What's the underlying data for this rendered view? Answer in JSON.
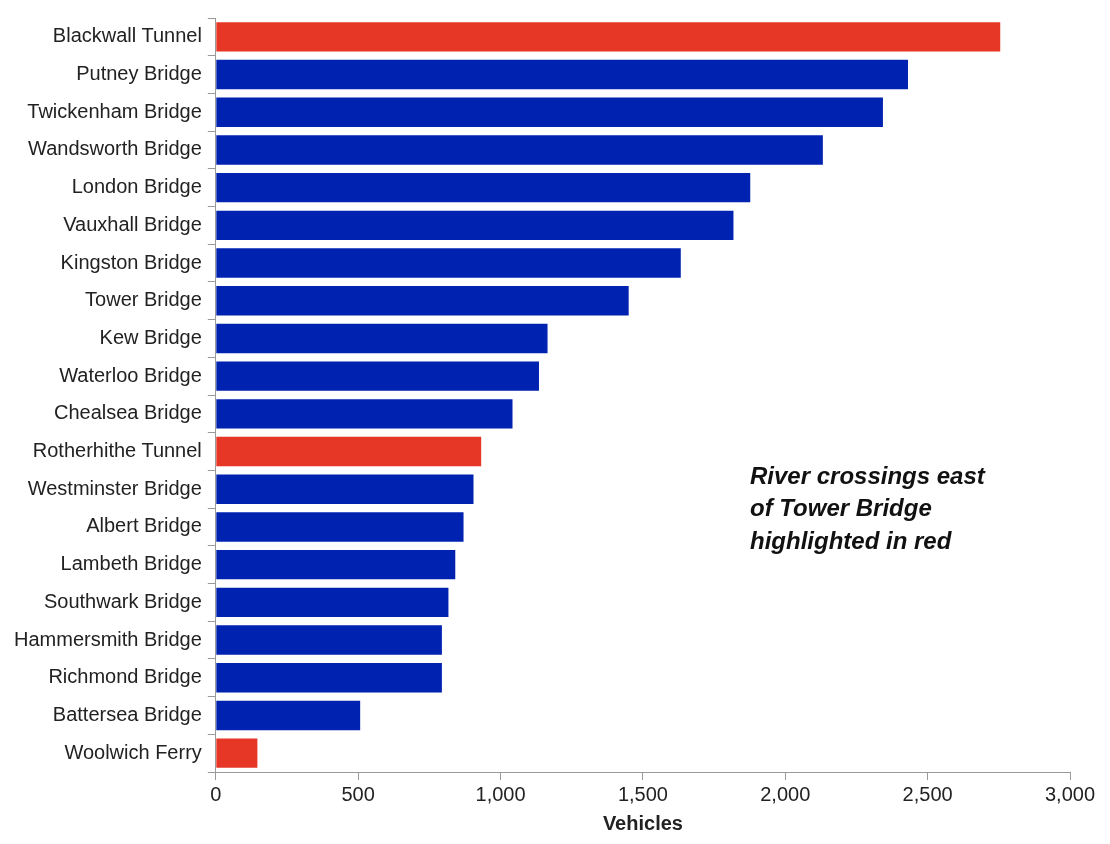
{
  "chart_data": {
    "type": "bar",
    "orientation": "horizontal",
    "xlabel": "Vehicles",
    "categories": [
      "Blackwall Tunnel",
      "Putney Bridge",
      "Twickenham Bridge",
      "Wandsworth Bridge",
      "London Bridge",
      "Vauxhall Bridge",
      "Kingston Bridge",
      "Tower Bridge",
      "Kew Bridge",
      "Waterloo Bridge",
      "Chealsea Bridge",
      "Rotherhithe Tunnel",
      "Westminster Bridge",
      "Albert Bridge",
      "Lambeth Bridge",
      "Southwark Bridge",
      "Hammersmith Bridge",
      "Richmond Bridge",
      "Battersea Bridge",
      "Woolwich Ferry"
    ],
    "values": [
      2755,
      2431,
      2343,
      2132,
      1877,
      1818,
      1633,
      1450,
      1165,
      1135,
      1042,
      932,
      905,
      870,
      841,
      817,
      794,
      794,
      507,
      146
    ],
    "colors": [
      "#e63726",
      "#0022b0",
      "#0022b0",
      "#0022b0",
      "#0022b0",
      "#0022b0",
      "#0022b0",
      "#0022b0",
      "#0022b0",
      "#0022b0",
      "#0022b0",
      "#e63726",
      "#0022b0",
      "#0022b0",
      "#0022b0",
      "#0022b0",
      "#0022b0",
      "#0022b0",
      "#0022b0",
      "#e63726"
    ],
    "xlim": [
      0,
      3000
    ],
    "xticks": [
      0,
      500,
      {
        "value": 1000,
        "label": "1,000"
      },
      {
        "value": 1500,
        "label": "1,500"
      },
      {
        "value": 2000,
        "label": "2,000"
      },
      {
        "value": 2500,
        "label": "2,500"
      },
      {
        "value": 3000,
        "label": "3,000"
      }
    ],
    "grid": false,
    "legend": false,
    "annotations": [
      "River crossings east of Tower Bridge highlighted in red"
    ]
  }
}
